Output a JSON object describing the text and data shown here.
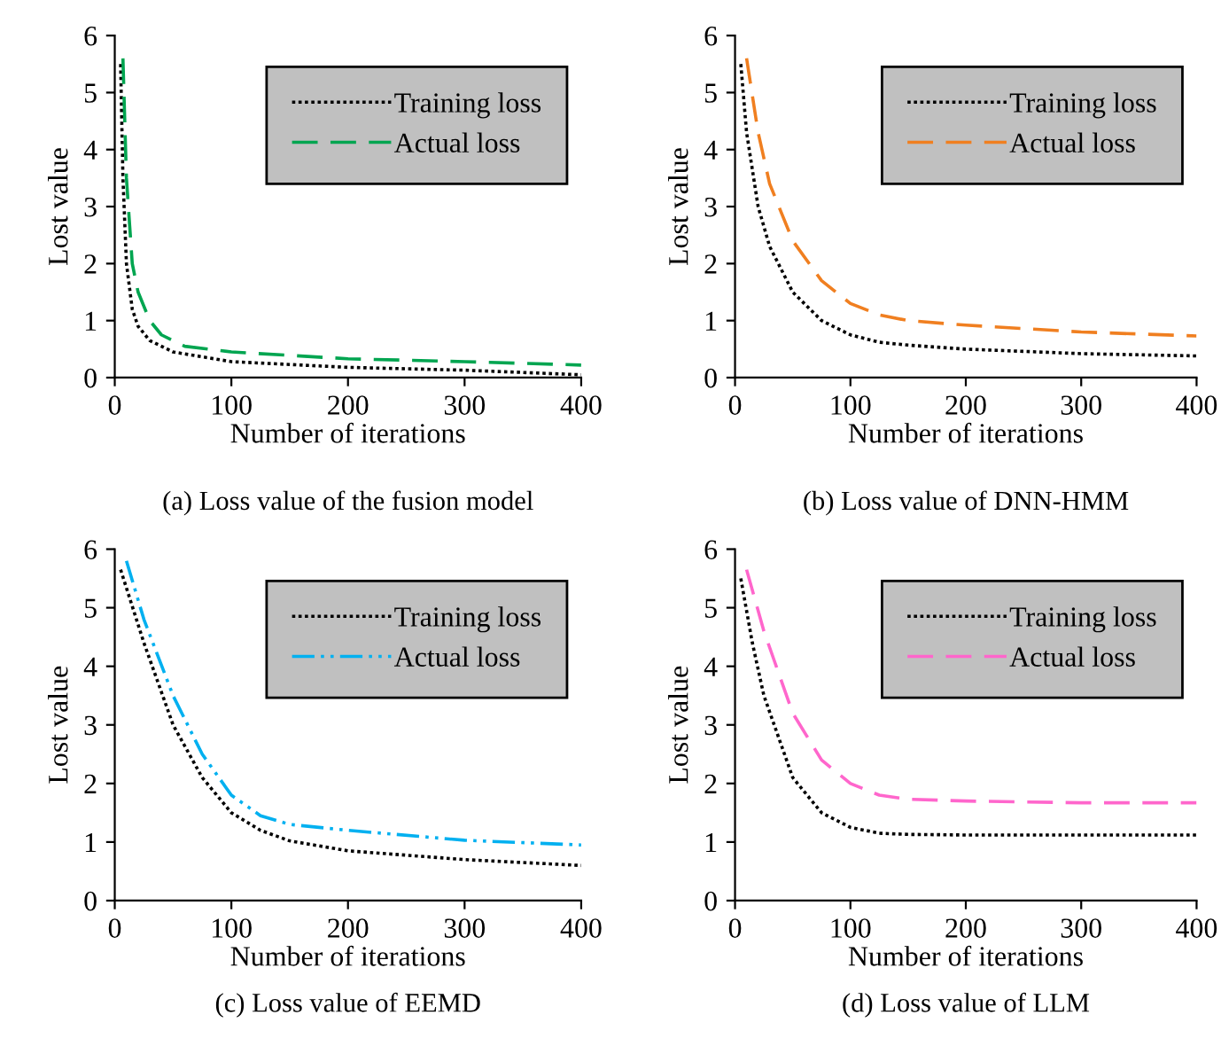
{
  "chart_data": [
    {
      "type": "line",
      "title": "(a) Loss value of the fusion model",
      "xlabel": "Number of iterations",
      "ylabel": "Lost value",
      "xlim": [
        0,
        400
      ],
      "xticks": [
        0,
        100,
        200,
        300,
        400
      ],
      "ylim": [
        0,
        6
      ],
      "yticks": [
        0,
        1,
        2,
        3,
        4,
        5,
        6
      ],
      "legend": "top right",
      "grid": false,
      "series": [
        {
          "name": "Training loss",
          "color": "#000000",
          "line_style": "dotted",
          "x": [
            5,
            7,
            10,
            15,
            20,
            30,
            50,
            100,
            200,
            300,
            400
          ],
          "values": [
            5.5,
            3.5,
            2.0,
            1.2,
            0.9,
            0.65,
            0.45,
            0.28,
            0.18,
            0.13,
            0.05
          ]
        },
        {
          "name": "Actual loss",
          "color": "#00a550",
          "line_style": "dashed",
          "x": [
            7,
            10,
            15,
            20,
            30,
            40,
            60,
            100,
            200,
            300,
            400
          ],
          "values": [
            5.6,
            3.5,
            2.0,
            1.5,
            1.0,
            0.75,
            0.55,
            0.45,
            0.33,
            0.28,
            0.22
          ]
        }
      ]
    },
    {
      "type": "line",
      "title": "(b) Loss value of DNN-HMM",
      "xlabel": "Number of iterations",
      "ylabel": "Lost value",
      "xlim": [
        0,
        400
      ],
      "xticks": [
        0,
        100,
        200,
        300,
        400
      ],
      "ylim": [
        0,
        6
      ],
      "yticks": [
        0,
        1,
        2,
        3,
        4,
        5,
        6
      ],
      "legend": "top right",
      "grid": false,
      "series": [
        {
          "name": "Training loss",
          "color": "#000000",
          "line_style": "dotted",
          "x": [
            5,
            10,
            20,
            30,
            50,
            75,
            100,
            125,
            150,
            200,
            300,
            400
          ],
          "values": [
            5.5,
            4.3,
            3.0,
            2.3,
            1.5,
            1.0,
            0.75,
            0.62,
            0.57,
            0.5,
            0.42,
            0.38
          ]
        },
        {
          "name": "Actual loss",
          "color": "#f07f20",
          "line_style": "dashed",
          "x": [
            10,
            20,
            30,
            50,
            75,
            100,
            125,
            150,
            200,
            300,
            400
          ],
          "values": [
            5.6,
            4.3,
            3.4,
            2.4,
            1.7,
            1.3,
            1.1,
            1.0,
            0.92,
            0.8,
            0.73
          ]
        }
      ]
    },
    {
      "type": "line",
      "title": "(c) Loss value of EEMD",
      "xlabel": "Number of iterations",
      "ylabel": "Lost value",
      "xlim": [
        0,
        400
      ],
      "xticks": [
        0,
        100,
        200,
        300,
        400
      ],
      "ylim": [
        0,
        6
      ],
      "yticks": [
        0,
        1,
        2,
        3,
        4,
        5,
        6
      ],
      "legend": "top right",
      "grid": false,
      "series": [
        {
          "name": "Training loss",
          "color": "#000000",
          "line_style": "dotted",
          "x": [
            5,
            25,
            50,
            75,
            100,
            125,
            150,
            200,
            300,
            400
          ],
          "values": [
            5.65,
            4.4,
            3.0,
            2.1,
            1.5,
            1.2,
            1.02,
            0.85,
            0.7,
            0.6
          ]
        },
        {
          "name": "Actual loss",
          "color": "#00b0f0",
          "line_style": "dashdot",
          "x": [
            10,
            25,
            50,
            75,
            100,
            125,
            150,
            200,
            300,
            400
          ],
          "values": [
            5.8,
            4.8,
            3.5,
            2.5,
            1.8,
            1.45,
            1.3,
            1.2,
            1.03,
            0.95
          ]
        }
      ]
    },
    {
      "type": "line",
      "title": "(d) Loss value of LLM",
      "xlabel": "Number of iterations",
      "ylabel": "Lost value",
      "xlim": [
        0,
        400
      ],
      "xticks": [
        0,
        100,
        200,
        300,
        400
      ],
      "ylim": [
        0,
        6
      ],
      "yticks": [
        0,
        1,
        2,
        3,
        4,
        5,
        6
      ],
      "legend": "top right",
      "grid": false,
      "series": [
        {
          "name": "Training loss",
          "color": "#000000",
          "line_style": "dotted",
          "x": [
            5,
            15,
            25,
            50,
            75,
            100,
            125,
            150,
            200,
            300,
            400
          ],
          "values": [
            5.5,
            4.4,
            3.5,
            2.1,
            1.5,
            1.25,
            1.15,
            1.13,
            1.12,
            1.12,
            1.12
          ]
        },
        {
          "name": "Actual loss",
          "color": "#ff66cc",
          "line_style": "dashed",
          "x": [
            10,
            25,
            50,
            75,
            100,
            125,
            150,
            200,
            300,
            400
          ],
          "values": [
            5.65,
            4.6,
            3.2,
            2.4,
            2.0,
            1.8,
            1.73,
            1.7,
            1.67,
            1.67
          ]
        }
      ]
    }
  ]
}
